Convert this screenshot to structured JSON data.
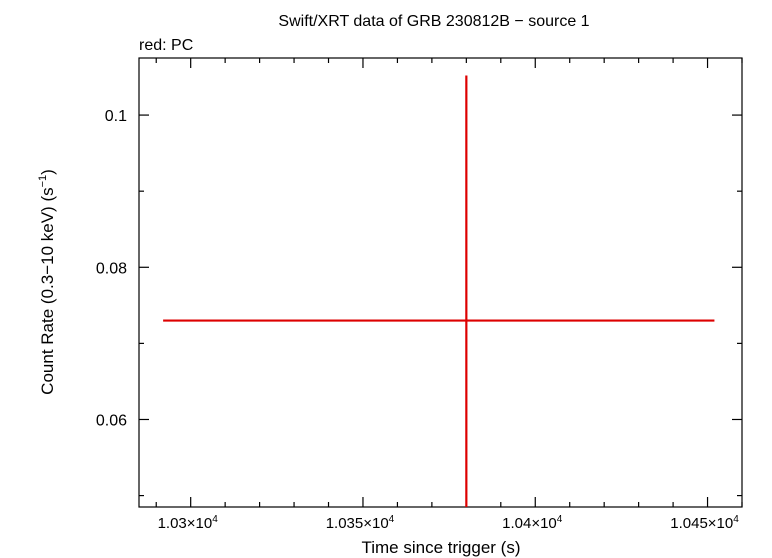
{
  "chart_data": {
    "type": "scatter",
    "title": "Swift/XRT data of GRB 230812B − source 1",
    "legend_text": "red: PC",
    "xlabel": "Time since trigger (s)",
    "ylabel_main": "Count Rate (0.3−10 keV) (s",
    "ylabel_sup": "−1",
    "ylabel_close": ")",
    "xlim": [
      10285,
      10460
    ],
    "ylim": [
      0.0485,
      0.1075
    ],
    "x_ticks": [
      {
        "value": 10300,
        "mantissa": "1.03×10",
        "exp": "4"
      },
      {
        "value": 10350,
        "mantissa": "1.035×10",
        "exp": "4"
      },
      {
        "value": 10400,
        "mantissa": "1.04×10",
        "exp": "4"
      },
      {
        "value": 10450,
        "mantissa": "1.045×10",
        "exp": "4"
      }
    ],
    "y_ticks": [
      {
        "value": 0.06,
        "label": "0.06"
      },
      {
        "value": 0.08,
        "label": "0.08"
      },
      {
        "value": 0.1,
        "label": "0.1"
      }
    ],
    "x_minor_step": 10,
    "y_minor_step": 0.01,
    "series": [
      {
        "color": "#dd0000",
        "points": [
          {
            "x": 10380,
            "y": 0.073,
            "xerr_low": 10292,
            "xerr_high": 10452,
            "yerr_low": 0.0485,
            "yerr_high": 0.1052
          }
        ]
      }
    ]
  }
}
